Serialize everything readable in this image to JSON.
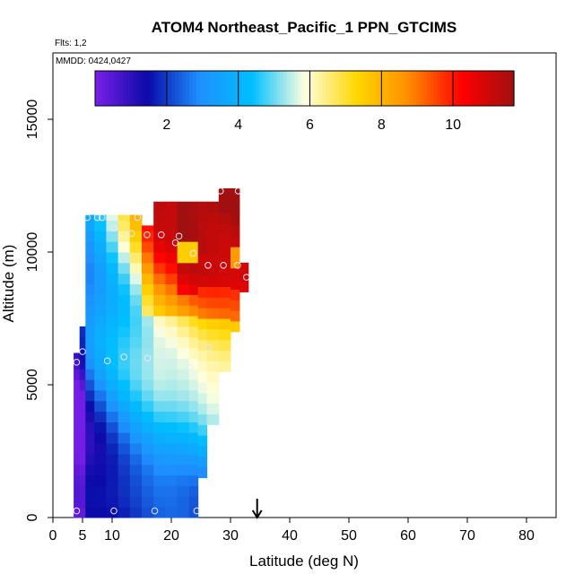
{
  "chart_data": {
    "type": "heatmap",
    "title": "ATOM4 Northeast_Pacific_1 PPN_GTCIMS",
    "subtitle": "Flts: 1,2",
    "date_label": "MMDD: 0424,0427",
    "xlabel": "Latitude (deg N)",
    "ylabel": "Altitude (m)",
    "xlim": [
      0,
      85
    ],
    "ylim": [
      0,
      17500
    ],
    "x_ticks": [
      0,
      5,
      10,
      20,
      30,
      40,
      50,
      60,
      70,
      80
    ],
    "x_tick_labels": [
      "0",
      "5",
      "10",
      "20",
      "30",
      "40",
      "50",
      "60",
      "70",
      "80"
    ],
    "y_ticks": [
      0,
      5000,
      10000,
      15000
    ],
    "y_tick_labels": [
      "0",
      "5000",
      "10000",
      "15000"
    ],
    "colorbar": {
      "range": [
        0,
        11.7
      ],
      "ticks": [
        2,
        4,
        6,
        8,
        10
      ],
      "tick_labels": [
        "2",
        "4",
        "6",
        "8",
        "10"
      ],
      "colors": [
        "#7b1fe8",
        "#0a0aa8",
        "#1e90ff",
        "#00bfff",
        "#ffffe0",
        "#ffd700",
        "#ff8c00",
        "#ff0000",
        "#a01010"
      ]
    },
    "marker": {
      "x": 34.5,
      "label": "arrow"
    },
    "columns": [
      {
        "x0": 3.5,
        "x1": 4.5,
        "ybot": 0,
        "ytop": 6200,
        "seed": 0.3
      },
      {
        "x0": 4.5,
        "x1": 5.5,
        "ybot": 0,
        "ytop": 7200,
        "seed": 0.5
      },
      {
        "x0": 5.5,
        "x1": 7,
        "ybot": 0,
        "ytop": 11400,
        "seed": 0.8
      },
      {
        "x0": 7,
        "x1": 9,
        "ybot": 0,
        "ytop": 11400,
        "seed": 1.1
      },
      {
        "x0": 9,
        "x1": 11,
        "ybot": 0,
        "ytop": 11400,
        "seed": 1.4
      },
      {
        "x0": 11,
        "x1": 13,
        "ybot": 0,
        "ytop": 11400,
        "seed": 1.7
      },
      {
        "x0": 13,
        "x1": 15,
        "ybot": 0,
        "ytop": 11400,
        "seed": 2.0
      },
      {
        "x0": 15,
        "x1": 17,
        "ybot": 0,
        "ytop": 11000,
        "seed": 2.3
      },
      {
        "x0": 17,
        "x1": 19,
        "ybot": 0,
        "ytop": 11900,
        "seed": 2.6
      },
      {
        "x0": 19,
        "x1": 21,
        "ybot": 0,
        "ytop": 11900,
        "seed": 2.9
      },
      {
        "x0": 21,
        "x1": 23,
        "ybot": 0,
        "ytop": 11900,
        "seed": 3.2
      },
      {
        "x0": 23,
        "x1": 24.5,
        "ybot": 0,
        "ytop": 11900,
        "seed": 3.5
      },
      {
        "x0": 24.5,
        "x1": 26,
        "ybot": 1500,
        "ytop": 11900,
        "seed": 3.8
      },
      {
        "x0": 26,
        "x1": 28,
        "ybot": 3500,
        "ytop": 11900,
        "seed": 4.1
      },
      {
        "x0": 28,
        "x1": 30,
        "ybot": 5500,
        "ytop": 12400,
        "seed": 4.4
      },
      {
        "x0": 30,
        "x1": 31.5,
        "ybot": 7000,
        "ytop": 12400,
        "seed": 4.7
      },
      {
        "x0": 31.5,
        "x1": 33,
        "ybot": 8500,
        "ytop": 9600,
        "seed": 5.0
      }
    ],
    "points": [
      {
        "x": 4.0,
        "y": 250
      },
      {
        "x": 10.3,
        "y": 250
      },
      {
        "x": 17.2,
        "y": 250
      },
      {
        "x": 24.3,
        "y": 250
      },
      {
        "x": 4.0,
        "y": 5850
      },
      {
        "x": 5.0,
        "y": 6250
      },
      {
        "x": 9.2,
        "y": 5900
      },
      {
        "x": 12.0,
        "y": 6050
      },
      {
        "x": 16.0,
        "y": 6000
      },
      {
        "x": 18.7,
        "y": 6050
      },
      {
        "x": 23.1,
        "y": 5650
      },
      {
        "x": 26.3,
        "y": 6400
      },
      {
        "x": 5.8,
        "y": 11300
      },
      {
        "x": 7.5,
        "y": 11300
      },
      {
        "x": 8.3,
        "y": 11300
      },
      {
        "x": 14.3,
        "y": 11300
      },
      {
        "x": 10.3,
        "y": 10900
      },
      {
        "x": 13.3,
        "y": 10700
      },
      {
        "x": 15.9,
        "y": 10650
      },
      {
        "x": 18.3,
        "y": 10650
      },
      {
        "x": 21.3,
        "y": 10600
      },
      {
        "x": 20.7,
        "y": 10350
      },
      {
        "x": 23.7,
        "y": 9950
      },
      {
        "x": 26.2,
        "y": 9500
      },
      {
        "x": 28.8,
        "y": 9500
      },
      {
        "x": 31.2,
        "y": 9500
      },
      {
        "x": 32.7,
        "y": 9050
      },
      {
        "x": 28.3,
        "y": 12300
      },
      {
        "x": 31.3,
        "y": 12300
      }
    ],
    "hotspots": [
      {
        "x0": 22,
        "x1": 25,
        "ylo": 9700,
        "yhi": 10500,
        "value": 7.5
      },
      {
        "x0": 25,
        "x1": 31,
        "ylo": 9600,
        "yhi": 10000,
        "value": 11.0
      },
      {
        "x0": 30.5,
        "x1": 31.5,
        "ylo": 9600,
        "yhi": 10000,
        "value": 8.5
      }
    ]
  }
}
